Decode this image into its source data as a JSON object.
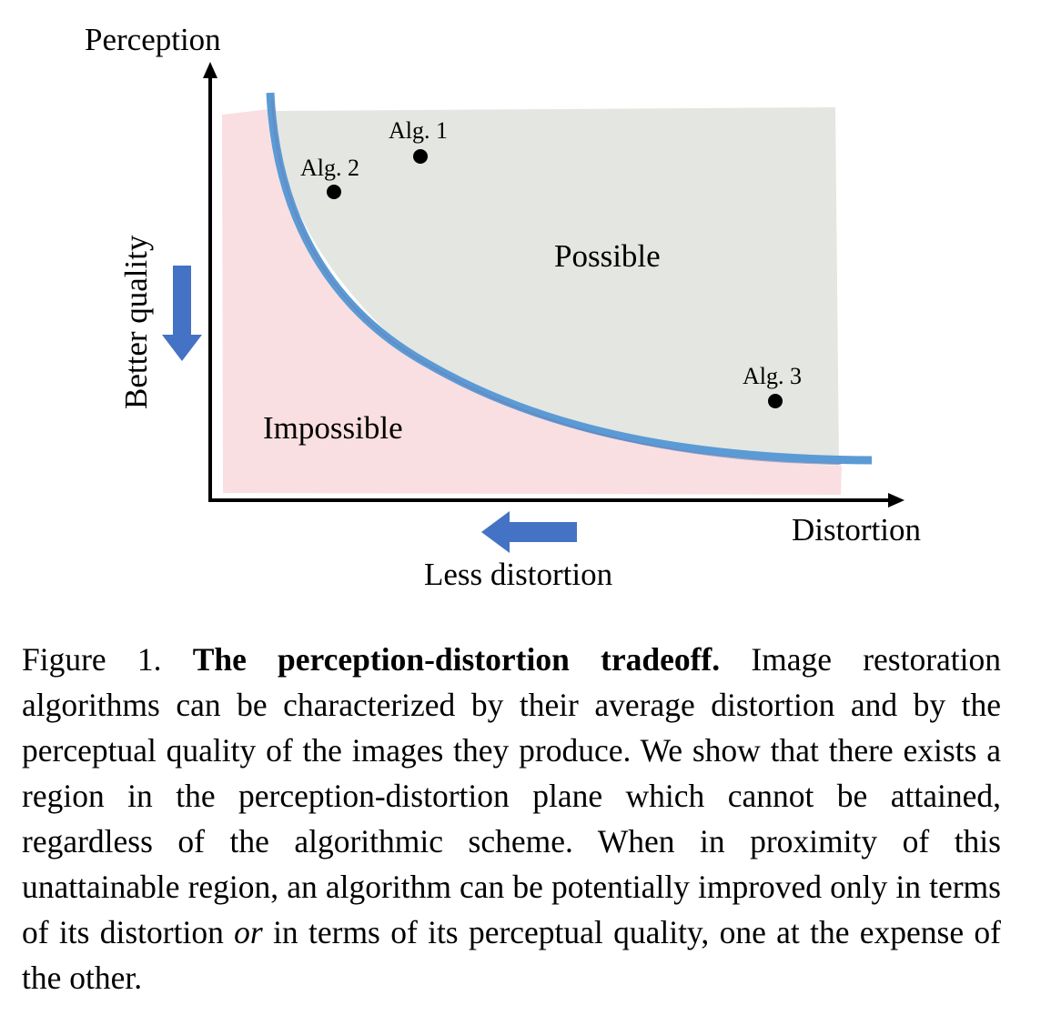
{
  "figure": {
    "y_axis_label": "Perception",
    "x_axis_label": "Distortion",
    "y_arrow_label": "Better quality",
    "x_arrow_label": "Less distortion",
    "regions": {
      "possible": "Possible",
      "impossible": "Impossible"
    },
    "points": [
      {
        "label": "Alg. 1"
      },
      {
        "label": "Alg. 2"
      },
      {
        "label": "Alg. 3"
      }
    ],
    "colors": {
      "possible_fill": "#e3e6e1",
      "impossible_fill": "#f9dfe1",
      "curve": "#5b9bd5",
      "arrow": "#4472c4",
      "axis": "#000000"
    }
  },
  "caption": {
    "prefix": "Figure 1. ",
    "title": "The perception-distortion tradeoff.",
    "text_part1": " Image restoration algorithms can be characterized by their average distortion and by the perceptual quality of the images they produce. We show that there exists a region in the perception-distortion plane which cannot be attained, regardless of the algorithmic scheme. When in proximity of this unattainable region, an algorithm can be potentially improved only in terms of its distortion ",
    "emph": "or",
    "text_part2": " in terms of its perceptual quality, one at the expense of the other."
  }
}
